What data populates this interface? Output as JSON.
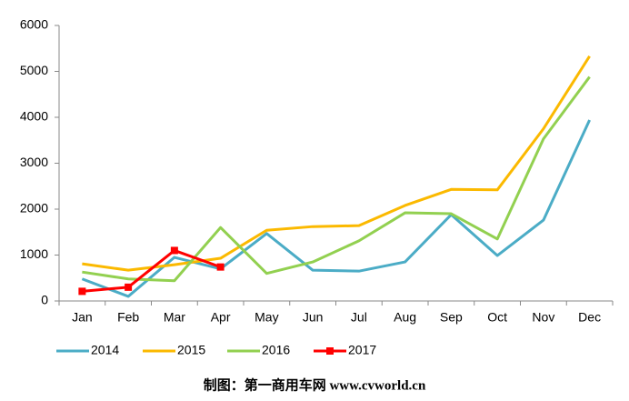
{
  "chart_data": {
    "type": "line",
    "categories": [
      "Jan",
      "Feb",
      "Mar",
      "Apr",
      "May",
      "Jun",
      "Jul",
      "Aug",
      "Sep",
      "Oct",
      "Nov",
      "Dec"
    ],
    "series": [
      {
        "name": "2014",
        "color": "#4bacc6",
        "values": [
          480,
          100,
          950,
          700,
          1470,
          670,
          650,
          850,
          1880,
          990,
          1760,
          3940
        ]
      },
      {
        "name": "2015",
        "color": "#fbb900",
        "values": [
          810,
          670,
          790,
          930,
          1540,
          1620,
          1640,
          2080,
          2430,
          2420,
          3750,
          5330
        ]
      },
      {
        "name": "2016",
        "color": "#92d050",
        "values": [
          630,
          480,
          440,
          1600,
          600,
          850,
          1310,
          1920,
          1900,
          1350,
          3530,
          4880
        ]
      },
      {
        "name": "2017",
        "color": "#ff0000",
        "marker": "square",
        "values": [
          210,
          300,
          1100,
          740,
          null,
          null,
          null,
          null,
          null,
          null,
          null,
          null
        ]
      }
    ],
    "ylim": [
      0,
      6000
    ],
    "yticks": [
      0,
      1000,
      2000,
      3000,
      4000,
      5000,
      6000
    ],
    "legend": "bottom",
    "footer": "制图：第一商用车网 www.cvworld.cn"
  }
}
